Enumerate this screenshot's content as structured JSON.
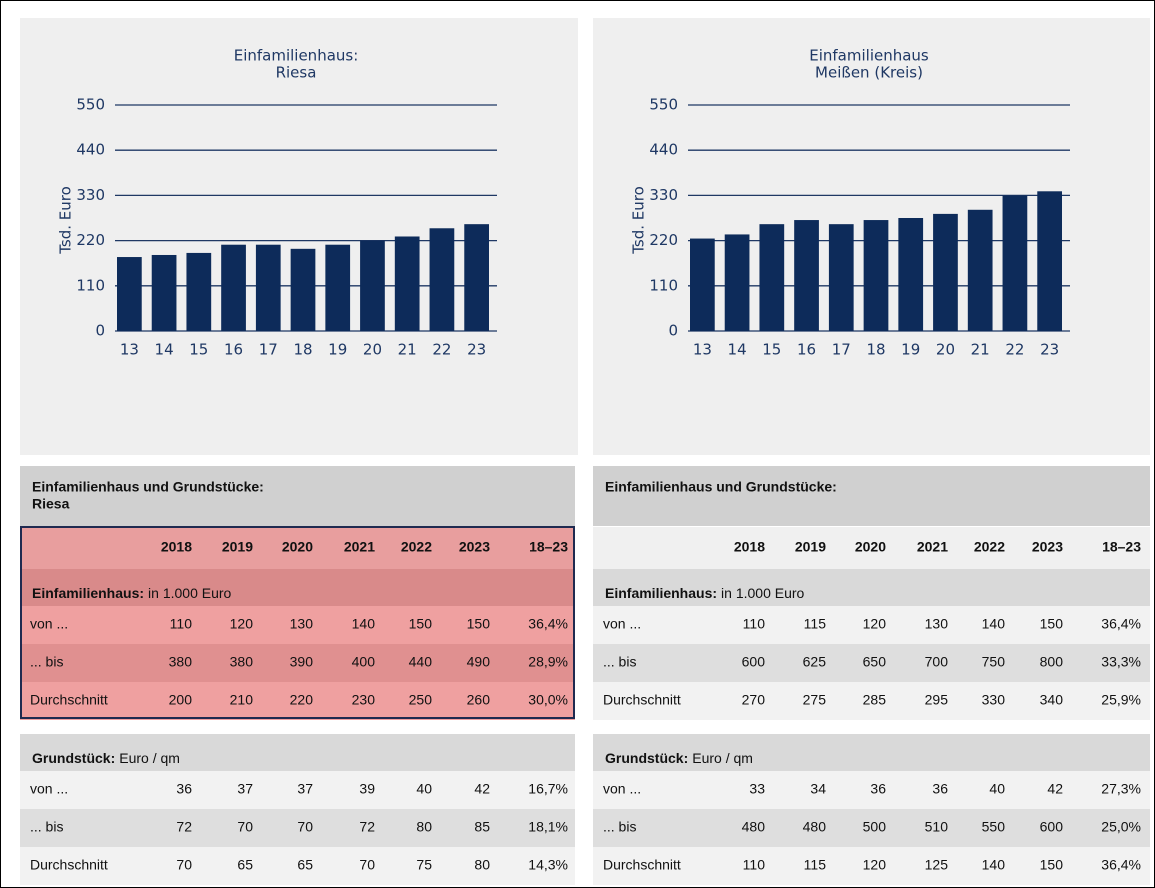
{
  "chart_data": [
    {
      "type": "bar",
      "title": "Einfamilienhaus:",
      "subtitle": "Riesa",
      "y_label": "Tsd. Euro",
      "categories": [
        "13",
        "14",
        "15",
        "16",
        "17",
        "18",
        "19",
        "20",
        "21",
        "22",
        "23"
      ],
      "values": [
        180,
        185,
        190,
        210,
        210,
        200,
        210,
        220,
        230,
        250,
        260
      ],
      "color": "#0d2b5a",
      "ylim": [
        0,
        550
      ],
      "yticks": [
        0,
        110,
        220,
        330,
        440,
        550
      ],
      "grid": true
    },
    {
      "type": "bar",
      "title": "Einfamilienhaus",
      "subtitle": "Meißen (Kreis)",
      "y_label": "Tsd. Euro",
      "categories": [
        "13",
        "14",
        "15",
        "16",
        "17",
        "18",
        "19",
        "20",
        "21",
        "22",
        "23"
      ],
      "values": [
        225,
        235,
        260,
        270,
        260,
        270,
        275,
        285,
        295,
        330,
        340
      ],
      "color": "#0d2b5a",
      "ylim": [
        0,
        550
      ],
      "yticks": [
        0,
        110,
        220,
        330,
        440,
        550
      ],
      "grid": true
    }
  ],
  "tables": [
    {
      "title": [
        "Einfamilienhaus und Grundstücke:",
        "Riesa"
      ],
      "columns": [
        "2018",
        "2019",
        "2020",
        "2021",
        "2022",
        "2023",
        "18–23"
      ],
      "sections": [
        {
          "label": "Einfamilienhaus:",
          "unit": "in 1.000 Euro",
          "rows": [
            {
              "label": "von ...",
              "values": [
                "110",
                "120",
                "130",
                "140",
                "150",
                "150",
                "36,4%"
              ]
            },
            {
              "label": "... bis",
              "values": [
                "380",
                "380",
                "390",
                "400",
                "440",
                "490",
                "28,9%"
              ]
            },
            {
              "label": "Durchschnitt",
              "values": [
                "200",
                "210",
                "220",
                "230",
                "250",
                "260",
                "30,0%"
              ]
            }
          ]
        },
        {
          "label": "Grundstück:",
          "unit": "Euro / qm",
          "rows": [
            {
              "label": "von ...",
              "values": [
                "36",
                "37",
                "37",
                "39",
                "40",
                "42",
                "16,7%"
              ]
            },
            {
              "label": "... bis",
              "values": [
                "72",
                "70",
                "70",
                "72",
                "80",
                "85",
                "18,1%"
              ]
            },
            {
              "label": "Durchschnitt",
              "values": [
                "70",
                "65",
                "65",
                "70",
                "75",
                "80",
                "14,3%"
              ]
            }
          ]
        }
      ]
    },
    {
      "title": [
        "Einfamilienhaus und Grundstücke:"
      ],
      "columns": [
        "2018",
        "2019",
        "2020",
        "2021",
        "2022",
        "2023",
        "18–23"
      ],
      "sections": [
        {
          "label": "Einfamilienhaus:",
          "unit": "in 1.000 Euro",
          "rows": [
            {
              "label": "von ...",
              "values": [
                "110",
                "115",
                "120",
                "130",
                "140",
                "150",
                "36,4%"
              ]
            },
            {
              "label": "... bis",
              "values": [
                "600",
                "625",
                "650",
                "700",
                "750",
                "800",
                "33,3%"
              ]
            },
            {
              "label": "Durchschnitt",
              "values": [
                "270",
                "275",
                "285",
                "295",
                "330",
                "340",
                "25,9%"
              ]
            }
          ]
        },
        {
          "label": "Grundstück:",
          "unit": "Euro / qm",
          "rows": [
            {
              "label": "von ...",
              "values": [
                "33",
                "34",
                "36",
                "36",
                "40",
                "42",
                "27,3%"
              ]
            },
            {
              "label": "... bis",
              "values": [
                "480",
                "480",
                "500",
                "510",
                "550",
                "600",
                "25,0%"
              ]
            },
            {
              "label": "Durchschnitt",
              "values": [
                "110",
                "115",
                "120",
                "125",
                "140",
                "150",
                "36,4%"
              ]
            }
          ]
        }
      ]
    }
  ]
}
